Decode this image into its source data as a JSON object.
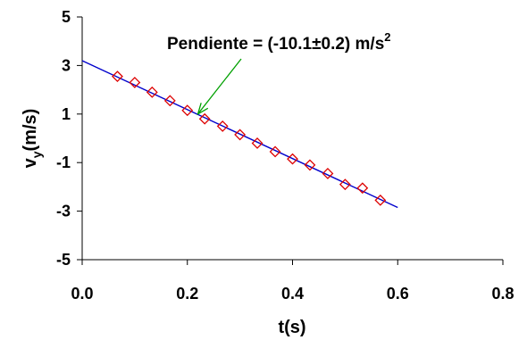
{
  "chart_data": {
    "type": "scatter",
    "xlabel": "t(s)",
    "ylabel": "vy(m/s)",
    "ylabel_main": "v",
    "ylabel_sub": "y",
    "ylabel_rest": "(m/s)",
    "xlim": [
      0.0,
      0.8
    ],
    "ylim": [
      -5,
      5
    ],
    "xticks": [
      0.0,
      0.2,
      0.4,
      0.6,
      0.8
    ],
    "xtick_labels": [
      "0.0",
      "0.2",
      "0.4",
      "0.6",
      "0.8"
    ],
    "yticks": [
      5,
      3,
      1,
      -1,
      -3,
      -5
    ],
    "ytick_labels": [
      "5",
      "3",
      "1",
      "-1",
      "-3",
      "-5"
    ],
    "grid": false,
    "annotation": {
      "text": "Pendiente = (-10.1±0.2) m/s2",
      "main": "Pendiente = (-10.1±0.2) m/s",
      "sup": "2",
      "arrow_to": [
        0.22,
        1.0
      ]
    },
    "series": [
      {
        "marker": "diamond",
        "color": "#dd0000",
        "x": [
          0.067,
          0.1,
          0.133,
          0.167,
          0.2,
          0.233,
          0.267,
          0.3,
          0.333,
          0.367,
          0.4,
          0.433,
          0.467,
          0.5,
          0.533,
          0.567
        ],
        "y": [
          2.55,
          2.3,
          1.9,
          1.55,
          1.15,
          0.8,
          0.5,
          0.15,
          -0.2,
          -0.55,
          -0.85,
          -1.1,
          -1.45,
          -1.9,
          -2.05,
          -2.55
        ]
      },
      {
        "type": "line",
        "color": "#0000cc",
        "x": [
          0.0,
          0.6
        ],
        "y": [
          3.2,
          -2.85
        ]
      }
    ],
    "colors": {
      "markers": "#dd0000",
      "fit": "#0000cc",
      "arrow": "#00a000",
      "axes": "#000000"
    }
  }
}
